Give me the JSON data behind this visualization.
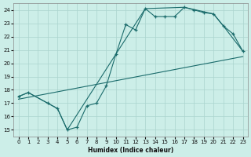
{
  "xlabel": "Humidex (Indice chaleur)",
  "bg_color": "#cceee8",
  "grid_color": "#aad4ce",
  "line_color": "#1a6b6b",
  "xlim": [
    -0.5,
    23.5
  ],
  "ylim": [
    14.5,
    24.5
  ],
  "xticks": [
    0,
    1,
    2,
    3,
    4,
    5,
    6,
    7,
    8,
    9,
    10,
    11,
    12,
    13,
    14,
    15,
    16,
    17,
    18,
    19,
    20,
    21,
    22,
    23
  ],
  "yticks": [
    15,
    16,
    17,
    18,
    19,
    20,
    21,
    22,
    23,
    24
  ],
  "curve1_x": [
    0,
    1,
    3,
    4,
    5,
    6,
    7,
    8,
    9,
    10,
    11,
    12,
    13,
    14,
    15,
    16,
    17,
    18,
    19,
    20,
    21,
    22,
    23
  ],
  "curve1_y": [
    17.5,
    17.8,
    17.0,
    16.6,
    15.0,
    15.2,
    16.8,
    17.0,
    18.3,
    20.7,
    22.9,
    22.5,
    24.1,
    23.5,
    23.5,
    23.5,
    24.2,
    24.0,
    23.8,
    23.7,
    22.8,
    22.2,
    20.9
  ],
  "curve2_x": [
    0,
    1,
    4,
    5,
    10,
    13,
    17,
    20,
    21,
    23
  ],
  "curve2_y": [
    17.5,
    17.8,
    16.6,
    15.0,
    20.7,
    24.1,
    24.2,
    23.7,
    22.8,
    20.9
  ],
  "curve3_x": [
    0,
    23
  ],
  "curve3_y": [
    17.3,
    20.5
  ]
}
